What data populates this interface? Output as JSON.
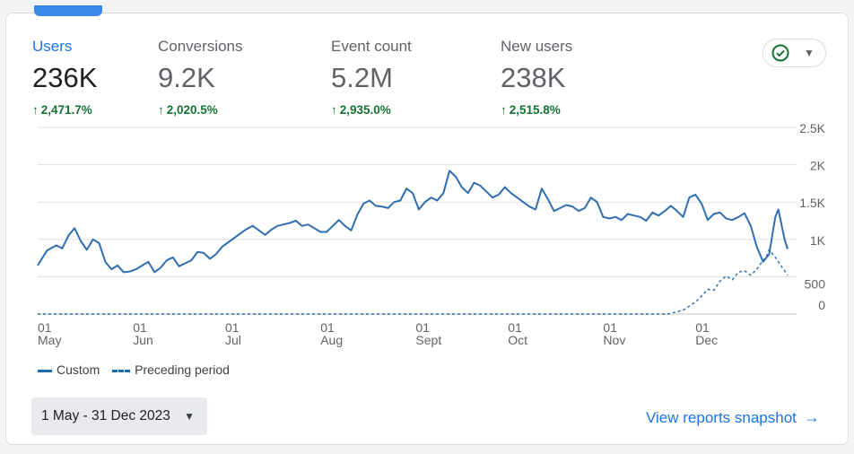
{
  "metrics": [
    {
      "label": "Users",
      "value": "236K",
      "delta": "2,471.7%"
    },
    {
      "label": "Conversions",
      "value": "9.2K",
      "delta": "2,020.5%"
    },
    {
      "label": "Event count",
      "value": "5.2M",
      "delta": "2,935.0%"
    },
    {
      "label": "New users",
      "value": "238K",
      "delta": "2,515.8%"
    }
  ],
  "status": {
    "icon": "check-circle-icon",
    "caret": "▼"
  },
  "legend": {
    "custom": "Custom",
    "preceding": "Preceding period"
  },
  "date_range": {
    "label": "1 May - 31 Dec 2023",
    "caret": "▼"
  },
  "snapshot": {
    "label": "View reports snapshot",
    "arrow": "→"
  },
  "colors": {
    "line": "#2f6eb0",
    "accent": "#1a73e8",
    "positive": "#137333",
    "grid": "#e0e0e0"
  },
  "chart_data": {
    "type": "line",
    "title": "",
    "xlabel": "",
    "ylabel": "",
    "ylim": [
      0,
      2500
    ],
    "y_ticks": [
      {
        "value": 0,
        "label": "0"
      },
      {
        "value": 500,
        "label": "500"
      },
      {
        "value": 1000,
        "label": "1K"
      },
      {
        "value": 1500,
        "label": "1.5K"
      },
      {
        "value": 2000,
        "label": "2K"
      },
      {
        "value": 2500,
        "label": "2.5K"
      }
    ],
    "x_ticks": [
      {
        "day": 0,
        "day_label": "01",
        "month_label": "May"
      },
      {
        "day": 31,
        "day_label": "01",
        "month_label": "Jun"
      },
      {
        "day": 61,
        "day_label": "01",
        "month_label": "Jul"
      },
      {
        "day": 92,
        "day_label": "01",
        "month_label": "Aug"
      },
      {
        "day": 123,
        "day_label": "01",
        "month_label": "Sept"
      },
      {
        "day": 153,
        "day_label": "01",
        "month_label": "Oct"
      },
      {
        "day": 184,
        "day_label": "01",
        "month_label": "Nov"
      },
      {
        "day": 214,
        "day_label": "01",
        "month_label": "Dec"
      }
    ],
    "x_range": [
      0,
      244
    ],
    "series": [
      {
        "name": "Custom",
        "style": "solid",
        "anchors": [
          [
            0,
            650
          ],
          [
            3,
            850
          ],
          [
            6,
            920
          ],
          [
            8,
            880
          ],
          [
            10,
            1050
          ],
          [
            12,
            1150
          ],
          [
            14,
            980
          ],
          [
            16,
            860
          ],
          [
            18,
            1000
          ],
          [
            20,
            950
          ],
          [
            22,
            700
          ],
          [
            24,
            600
          ],
          [
            26,
            650
          ],
          [
            28,
            560
          ],
          [
            30,
            570
          ],
          [
            32,
            600
          ],
          [
            34,
            650
          ],
          [
            36,
            700
          ],
          [
            38,
            560
          ],
          [
            40,
            620
          ],
          [
            42,
            720
          ],
          [
            44,
            760
          ],
          [
            46,
            640
          ],
          [
            48,
            680
          ],
          [
            50,
            720
          ],
          [
            52,
            830
          ],
          [
            54,
            820
          ],
          [
            56,
            740
          ],
          [
            58,
            800
          ],
          [
            60,
            900
          ],
          [
            62,
            960
          ],
          [
            64,
            1020
          ],
          [
            66,
            1080
          ],
          [
            68,
            1140
          ],
          [
            70,
            1180
          ],
          [
            72,
            1120
          ],
          [
            74,
            1060
          ],
          [
            76,
            1130
          ],
          [
            78,
            1180
          ],
          [
            80,
            1200
          ],
          [
            82,
            1220
          ],
          [
            84,
            1250
          ],
          [
            86,
            1180
          ],
          [
            88,
            1200
          ],
          [
            90,
            1150
          ],
          [
            92,
            1100
          ],
          [
            94,
            1100
          ],
          [
            96,
            1180
          ],
          [
            98,
            1260
          ],
          [
            100,
            1180
          ],
          [
            102,
            1120
          ],
          [
            104,
            1330
          ],
          [
            106,
            1480
          ],
          [
            108,
            1520
          ],
          [
            110,
            1450
          ],
          [
            112,
            1440
          ],
          [
            114,
            1420
          ],
          [
            116,
            1500
          ],
          [
            118,
            1520
          ],
          [
            120,
            1680
          ],
          [
            122,
            1620
          ],
          [
            124,
            1400
          ],
          [
            126,
            1500
          ],
          [
            128,
            1560
          ],
          [
            130,
            1520
          ],
          [
            132,
            1620
          ],
          [
            134,
            1920
          ],
          [
            136,
            1840
          ],
          [
            138,
            1700
          ],
          [
            140,
            1620
          ],
          [
            142,
            1760
          ],
          [
            144,
            1720
          ],
          [
            146,
            1640
          ],
          [
            148,
            1560
          ],
          [
            150,
            1600
          ],
          [
            152,
            1700
          ],
          [
            154,
            1620
          ],
          [
            156,
            1560
          ],
          [
            158,
            1500
          ],
          [
            160,
            1440
          ],
          [
            162,
            1400
          ],
          [
            164,
            1680
          ],
          [
            166,
            1540
          ],
          [
            168,
            1380
          ],
          [
            170,
            1420
          ],
          [
            172,
            1460
          ],
          [
            174,
            1440
          ],
          [
            176,
            1380
          ],
          [
            178,
            1420
          ],
          [
            180,
            1560
          ],
          [
            182,
            1500
          ],
          [
            184,
            1300
          ],
          [
            186,
            1280
          ],
          [
            188,
            1300
          ],
          [
            190,
            1260
          ],
          [
            192,
            1340
          ],
          [
            194,
            1320
          ],
          [
            196,
            1300
          ],
          [
            198,
            1250
          ],
          [
            200,
            1360
          ],
          [
            202,
            1320
          ],
          [
            204,
            1380
          ],
          [
            206,
            1450
          ],
          [
            208,
            1380
          ],
          [
            210,
            1300
          ],
          [
            212,
            1560
          ],
          [
            214,
            1600
          ],
          [
            216,
            1480
          ],
          [
            218,
            1260
          ],
          [
            220,
            1340
          ],
          [
            222,
            1360
          ],
          [
            224,
            1280
          ],
          [
            226,
            1260
          ],
          [
            228,
            1300
          ],
          [
            230,
            1350
          ],
          [
            232,
            1180
          ],
          [
            234,
            900
          ],
          [
            236,
            700
          ],
          [
            238,
            800
          ],
          [
            240,
            1300
          ],
          [
            241,
            1400
          ],
          [
            243,
            1000
          ],
          [
            244,
            870
          ]
        ]
      },
      {
        "name": "Preceding period",
        "style": "dashed",
        "anchors": [
          [
            0,
            0
          ],
          [
            205,
            0
          ],
          [
            210,
            50
          ],
          [
            214,
            160
          ],
          [
            216,
            240
          ],
          [
            218,
            330
          ],
          [
            220,
            320
          ],
          [
            222,
            440
          ],
          [
            224,
            510
          ],
          [
            226,
            460
          ],
          [
            228,
            560
          ],
          [
            230,
            580
          ],
          [
            232,
            520
          ],
          [
            234,
            600
          ],
          [
            236,
            720
          ],
          [
            237,
            760
          ],
          [
            238,
            860
          ],
          [
            240,
            760
          ],
          [
            242,
            640
          ],
          [
            244,
            520
          ]
        ]
      }
    ]
  }
}
